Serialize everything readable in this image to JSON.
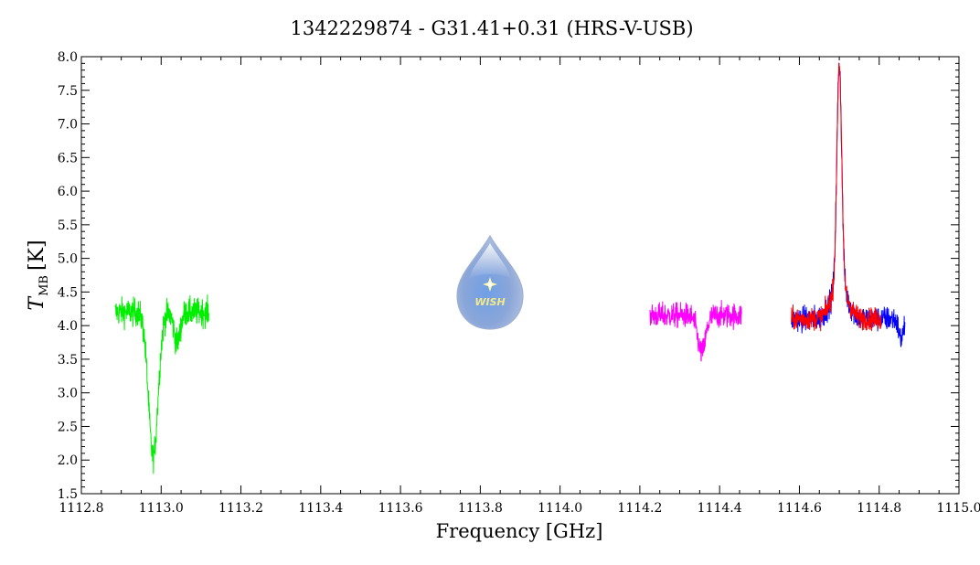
{
  "chart_data": {
    "type": "line",
    "title": "1342229874 - G31.41+0.31 (HRS-V-USB)",
    "xlabel": "Frequency [GHz]",
    "ylabel_main": "T",
    "ylabel_sub": "MB",
    "ylabel_unit": "[K]",
    "xlim": [
      1112.8,
      1115.0
    ],
    "ylim": [
      1.5,
      8.0
    ],
    "x_ticks": [
      "1112.8",
      "1113.0",
      "1113.2",
      "1113.4",
      "1113.6",
      "1113.8",
      "1114.0",
      "1114.2",
      "1114.4",
      "1114.6",
      "1114.8",
      "1115.0"
    ],
    "y_ticks": [
      "1.5",
      "2.0",
      "2.5",
      "3.0",
      "3.5",
      "4.0",
      "4.5",
      "5.0",
      "5.5",
      "6.0",
      "6.5",
      "7.0",
      "7.5",
      "8.0"
    ],
    "grid": false,
    "series": [
      {
        "color": "#00ee00",
        "x_range": [
          1112.885,
          1113.12
        ],
        "baseline": 4.2,
        "noise": 0.1,
        "features": [
          {
            "center": 1112.98,
            "amplitude": -2.15,
            "width": 0.012
          },
          {
            "center": 1113.04,
            "amplitude": -0.45,
            "width": 0.008
          }
        ]
      },
      {
        "color": "#ff00ff",
        "x_range": [
          1114.225,
          1114.455
        ],
        "baseline": 4.15,
        "noise": 0.09,
        "features": [
          {
            "center": 1114.355,
            "amplitude": -0.55,
            "width": 0.01
          }
        ]
      },
      {
        "color": "#0000ff",
        "x_range": [
          1114.58,
          1114.865
        ],
        "baseline": 4.1,
        "noise": 0.09,
        "features": [
          {
            "center": 1114.7,
            "amplitude": 3.3,
            "width": 0.006
          },
          {
            "center": 1114.7,
            "amplitude": 0.5,
            "width": 0.02
          },
          {
            "center": 1114.855,
            "amplitude": -0.3,
            "width": 0.006
          }
        ]
      },
      {
        "color": "#ff0000",
        "x_range": [
          1114.58,
          1114.805
        ],
        "baseline": 4.1,
        "noise": 0.08,
        "features": [
          {
            "center": 1114.7,
            "amplitude": 3.3,
            "width": 0.006
          },
          {
            "center": 1114.7,
            "amplitude": 0.5,
            "width": 0.02
          }
        ]
      }
    ]
  },
  "logo": {
    "text": "WISH",
    "icon": "water-drop-star-icon"
  }
}
